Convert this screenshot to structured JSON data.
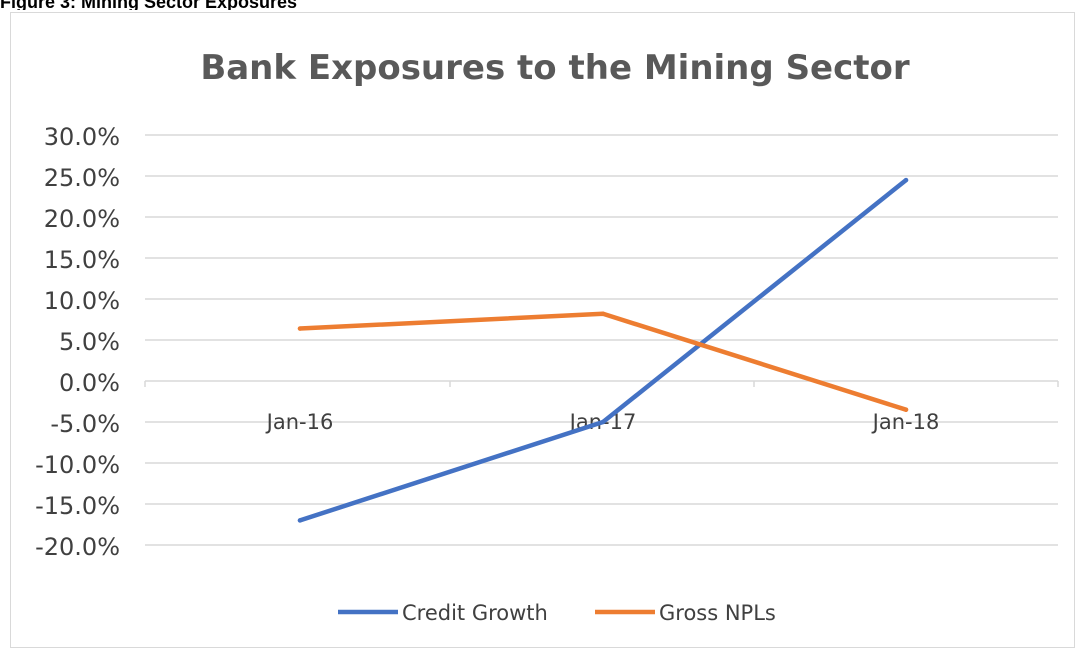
{
  "figure": {
    "cut_caption": "Figure 3: Mining Sector Exposures"
  },
  "chart_data": {
    "type": "line",
    "title": "Bank Exposures to the Mining Sector",
    "xlabel": "",
    "ylabel": "",
    "categories": [
      "Jan-16",
      "Jan-17",
      "Jan-18"
    ],
    "ylim": [
      -20,
      30
    ],
    "yticks": [
      30,
      25,
      20,
      15,
      10,
      5,
      0,
      -5,
      -10,
      -15,
      -20
    ],
    "ytick_labels": [
      "30.0%",
      "25.0%",
      "20.0%",
      "15.0%",
      "10.0%",
      "5.0%",
      "0.0%",
      "-5.0%",
      "-10.0%",
      "-15.0%",
      "-20.0%"
    ],
    "grid": true,
    "legend_position": "bottom",
    "series": [
      {
        "name": "Credit Growth",
        "values": [
          -17.0,
          -5.0,
          24.5
        ],
        "color": "#4472c4"
      },
      {
        "name": "Gross NPLs",
        "values": [
          6.4,
          8.2,
          -3.5
        ],
        "color": "#ed7d31"
      }
    ]
  }
}
